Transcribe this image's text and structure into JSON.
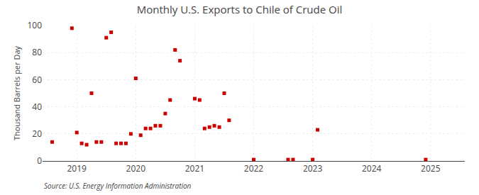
{
  "chart_data": {
    "type": "scatter",
    "title": "Monthly U.S. Exports to Chile of Crude Oil",
    "ylabel": "Thousand Barrels per Day",
    "annotations": [
      "Source: U.S. Energy Information Administration"
    ],
    "color": "#cc0000",
    "marker": "square",
    "grid": true,
    "xlim": [
      2018.42,
      2025.58
    ],
    "xticks": [
      2019,
      2020,
      2021,
      2022,
      2023,
      2024,
      2025
    ],
    "ylim": [
      0,
      100
    ],
    "yticks": [
      0,
      20,
      40,
      60,
      80,
      100
    ],
    "x": [
      2018.583,
      2018.917,
      2019.0,
      2019.083,
      2019.167,
      2019.25,
      2019.333,
      2019.417,
      2019.5,
      2019.583,
      2019.667,
      2019.75,
      2019.833,
      2019.917,
      2020.0,
      2020.083,
      2020.167,
      2020.25,
      2020.333,
      2020.417,
      2020.5,
      2020.583,
      2020.667,
      2020.75,
      2021.0,
      2021.083,
      2021.167,
      2021.25,
      2021.333,
      2021.417,
      2021.5,
      2021.583,
      2022.0,
      2022.583,
      2022.667,
      2023.0,
      2023.083,
      2024.917
    ],
    "values": [
      14,
      98,
      21,
      13,
      12,
      50,
      14,
      14,
      91,
      95,
      13,
      13,
      13,
      20,
      61,
      19,
      24,
      24,
      26,
      26,
      35,
      45,
      82,
      74,
      46,
      45,
      24,
      25,
      26,
      25,
      50,
      30,
      1,
      1,
      1,
      1,
      23,
      1
    ]
  }
}
